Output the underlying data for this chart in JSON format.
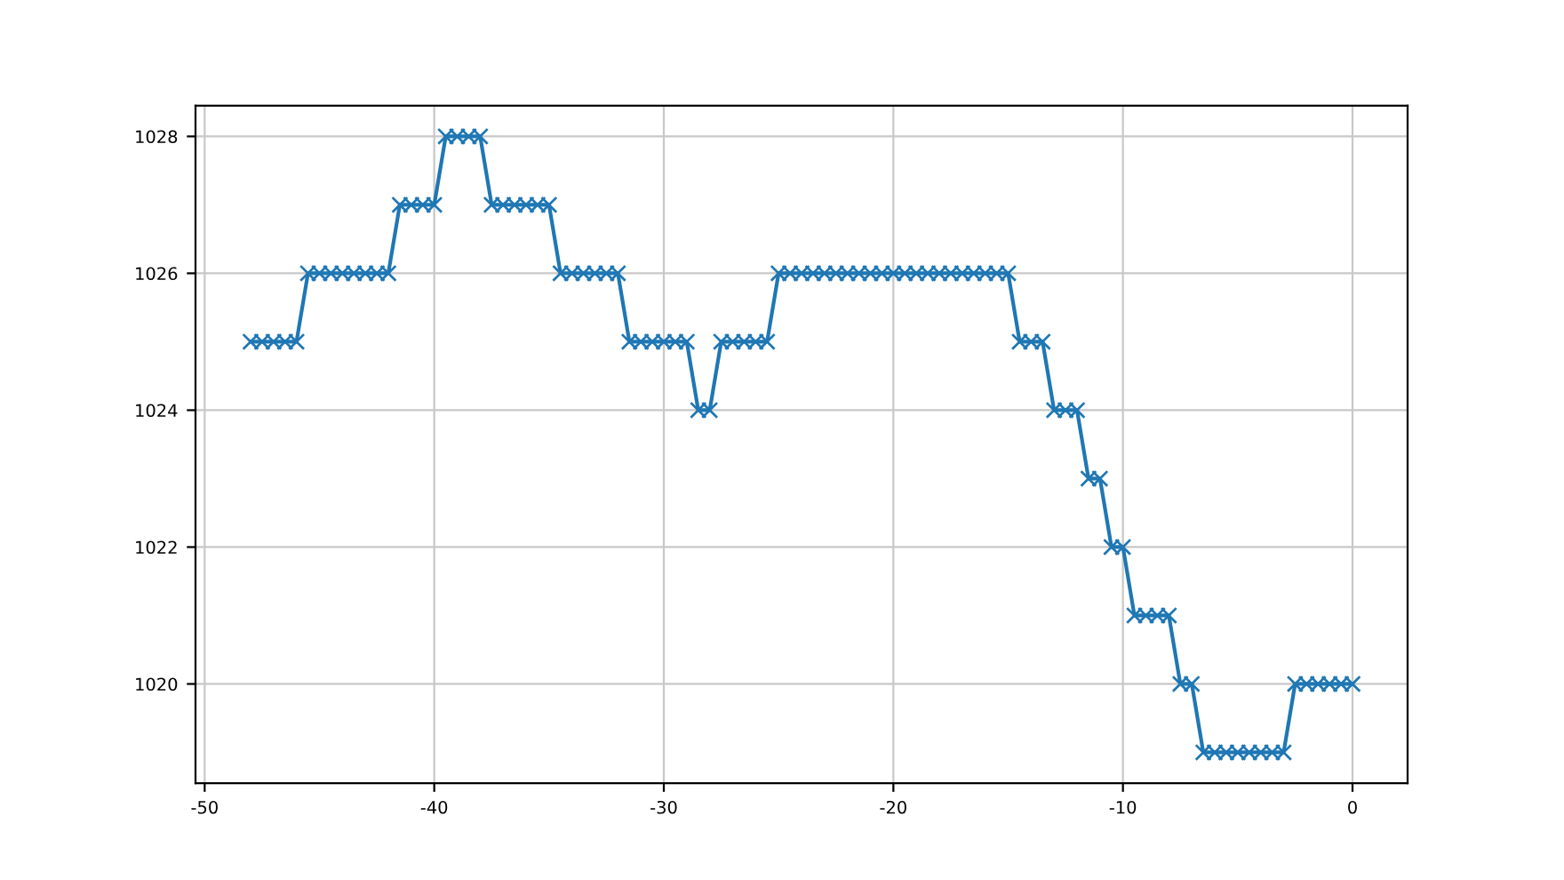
{
  "chart_data": {
    "type": "line",
    "marker": "cross",
    "line_style": "solid",
    "grid": true,
    "x": [
      -48,
      -47.5,
      -47,
      -46.5,
      -46,
      -45.5,
      -45,
      -44.5,
      -44,
      -43.5,
      -43,
      -42.5,
      -42,
      -41.5,
      -41,
      -40.5,
      -40,
      -39.5,
      -39,
      -38.5,
      -38,
      -37.5,
      -37,
      -36.5,
      -36,
      -35.5,
      -35,
      -34.5,
      -34,
      -33.5,
      -33,
      -32.5,
      -32,
      -31.5,
      -31,
      -30.5,
      -30,
      -29.5,
      -29,
      -28.5,
      -28,
      -27.5,
      -27,
      -26.5,
      -26,
      -25.5,
      -25,
      -24.5,
      -24,
      -23.5,
      -23,
      -22.5,
      -22,
      -21.5,
      -21,
      -20.5,
      -20,
      -19.5,
      -19,
      -18.5,
      -18,
      -17.5,
      -17,
      -16.5,
      -16,
      -15.5,
      -15,
      -14.5,
      -14,
      -13.5,
      -13,
      -12.5,
      -12,
      -11.5,
      -11,
      -10.5,
      -10,
      -9.5,
      -9,
      -8.5,
      -8,
      -7.5,
      -7,
      -6.5,
      -6,
      -5.5,
      -5,
      -4.5,
      -4,
      -3.5,
      -3,
      -2.5,
      -2,
      -1.5,
      -1,
      -0.5,
      0
    ],
    "series": [
      {
        "color": "#1f77b4",
        "values": [
          1025,
          1025,
          1025,
          1025,
          1025,
          1026,
          1026,
          1026,
          1026,
          1026,
          1026,
          1026,
          1026,
          1027,
          1027,
          1027,
          1027,
          1028,
          1028,
          1028,
          1028,
          1027,
          1027,
          1027,
          1027,
          1027,
          1027,
          1026,
          1026,
          1026,
          1026,
          1026,
          1026,
          1025,
          1025,
          1025,
          1025,
          1025,
          1025,
          1024,
          1024,
          1025,
          1025,
          1025,
          1025,
          1025,
          1026,
          1026,
          1026,
          1026,
          1026,
          1026,
          1026,
          1026,
          1026,
          1026,
          1026,
          1026,
          1026,
          1026,
          1026,
          1026,
          1026,
          1026,
          1026,
          1026,
          1026,
          1025,
          1025,
          1025,
          1024,
          1024,
          1024,
          1023,
          1023,
          1022,
          1022,
          1021,
          1021,
          1021,
          1021,
          1020,
          1020,
          1019,
          1019,
          1019,
          1019,
          1019,
          1019,
          1019,
          1019,
          1020,
          1020,
          1020,
          1020,
          1020,
          1020
        ]
      }
    ],
    "xlim": [
      -50.4,
      2.4
    ],
    "xticks": [
      -50,
      -40,
      -30,
      -20,
      -10,
      0
    ],
    "ylim": [
      1018.55,
      1028.45
    ],
    "yticks": [
      1020,
      1022,
      1024,
      1026,
      1028
    ]
  }
}
